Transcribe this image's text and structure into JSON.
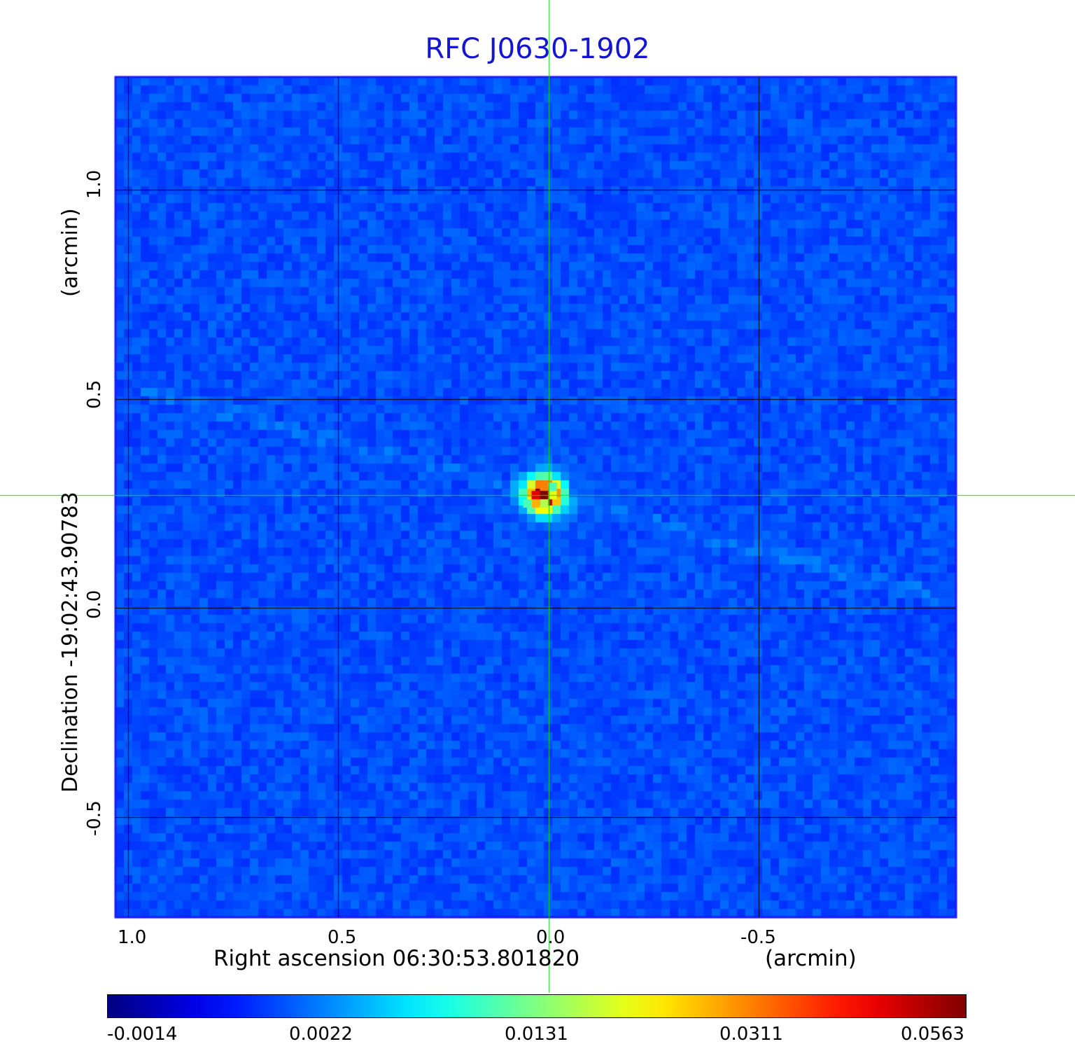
{
  "chart_data": {
    "type": "heatmap",
    "title": "RFC J0630-1902",
    "xlabel": "Right ascension  06:30:53.801820",
    "xunit": "(arcmin)",
    "ylabel": "Declination  -19:02:43.90783",
    "yunit": "(arcmin)",
    "x_ticks": [
      "1.0",
      "0.5",
      "0.0",
      "-0.5"
    ],
    "y_ticks": [
      "1.0",
      "0.5",
      "0.0",
      "-0.5"
    ],
    "xlim": [
      1.03,
      -0.97
    ],
    "ylim": [
      -0.74,
      1.27
    ],
    "grid": true,
    "colormap": "jet",
    "colorbar_ticks": [
      "-0.0014",
      "0.0022",
      "0.0131",
      "0.0311",
      "0.0563"
    ],
    "value_range": [
      -0.0014,
      0.0563
    ],
    "peak": {
      "x": 0.01,
      "y": 0.27,
      "value": 0.0563
    },
    "crosshair": {
      "x": 0.0,
      "y": 0.27,
      "color": "#00e000"
    }
  }
}
